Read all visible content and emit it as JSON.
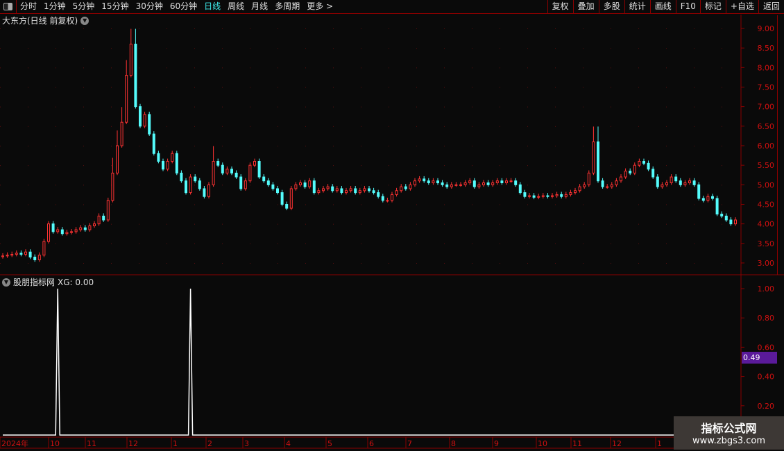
{
  "toolbar": {
    "periods": [
      "分时",
      "1分钟",
      "5分钟",
      "15分钟",
      "30分钟",
      "60分钟",
      "日线",
      "周线",
      "月线",
      "多周期",
      "更多 >"
    ],
    "active": "日线",
    "right": [
      "复权",
      "叠加",
      "多股",
      "统计",
      "画线",
      "F10",
      "标记",
      "+自选",
      "返回"
    ]
  },
  "main": {
    "title": "大东方(日线 前复权)"
  },
  "indicator": {
    "title": "股朋指标网",
    "xg_label": "XG: 0.00",
    "cursor_value": "0.49"
  },
  "watermark": {
    "line1": "指标公式网",
    "line2": "www.zbgs3.com"
  },
  "colors": {
    "up": "#ff3232",
    "down": "#54fcfc",
    "axis": "#8b0000",
    "active_tab": "#3ef0f0",
    "badge": "#5a1a9a"
  },
  "chart_data": [
    {
      "type": "candlestick",
      "ylim": [
        2.8,
        9.1
      ],
      "yticks": [
        "9.00",
        "8.50",
        "8.00",
        "7.50",
        "7.00",
        "6.50",
        "6.00",
        "5.50",
        "5.00",
        "4.50",
        "4.00",
        "3.50",
        "3.00"
      ],
      "xticks": [
        "2024年",
        "10",
        "11",
        "12",
        "1",
        "2",
        "3",
        "4",
        "5",
        "6",
        "7",
        "8",
        "9",
        "10",
        "11",
        "12",
        "1"
      ],
      "close": [
        3.18,
        3.2,
        3.22,
        3.25,
        3.22,
        3.28,
        3.15,
        3.08,
        3.2,
        3.55,
        4.0,
        3.8,
        3.85,
        3.75,
        3.78,
        3.8,
        3.85,
        3.9,
        3.85,
        3.95,
        4.0,
        4.2,
        4.1,
        4.6,
        5.3,
        6.0,
        6.6,
        7.8,
        8.6,
        7.0,
        6.5,
        6.8,
        6.3,
        5.8,
        5.6,
        5.4,
        5.6,
        5.8,
        5.3,
        5.1,
        4.8,
        5.2,
        5.1,
        4.9,
        4.7,
        5.0,
        5.6,
        5.5,
        5.3,
        5.4,
        5.3,
        5.2,
        4.9,
        5.1,
        5.5,
        5.6,
        5.2,
        5.1,
        5.0,
        4.9,
        4.8,
        4.5,
        4.4,
        4.9,
        5.0,
        5.05,
        4.95,
        5.1,
        4.8,
        4.85,
        4.9,
        4.95,
        4.85,
        4.9,
        4.8,
        4.85,
        4.9,
        4.8,
        4.85,
        4.9,
        4.85,
        4.8,
        4.7,
        4.6,
        4.6,
        4.75,
        4.85,
        4.95,
        4.9,
        5.0,
        5.1,
        5.15,
        5.1,
        5.05,
        5.1,
        5.05,
        5.0,
        4.95,
        5.0,
        5.0,
        5.0,
        5.05,
        5.1,
        4.95,
        5.0,
        5.05,
        5.0,
        5.05,
        5.1,
        5.05,
        5.1,
        5.1,
        5.0,
        4.8,
        4.7,
        4.72,
        4.68,
        4.7,
        4.72,
        4.7,
        4.72,
        4.75,
        4.7,
        4.75,
        4.8,
        4.85,
        4.95,
        5.0,
        5.3,
        6.1,
        5.1,
        4.95,
        4.95,
        5.0,
        5.1,
        5.2,
        5.35,
        5.3,
        5.5,
        5.6,
        5.55,
        5.4,
        5.2,
        4.95,
        5.0,
        5.05,
        5.2,
        5.1,
        5.0,
        5.05,
        5.1,
        5.0,
        4.65,
        4.6,
        4.7,
        4.65,
        4.25,
        4.2,
        4.1,
        4.0,
        4.1
      ]
    },
    {
      "type": "line",
      "name": "XG",
      "ylim": [
        0,
        1.05
      ],
      "yticks": [
        "1.00",
        "0.80",
        "0.60",
        "0.40",
        "0.20"
      ],
      "signal_indices": [
        12,
        41
      ]
    }
  ]
}
